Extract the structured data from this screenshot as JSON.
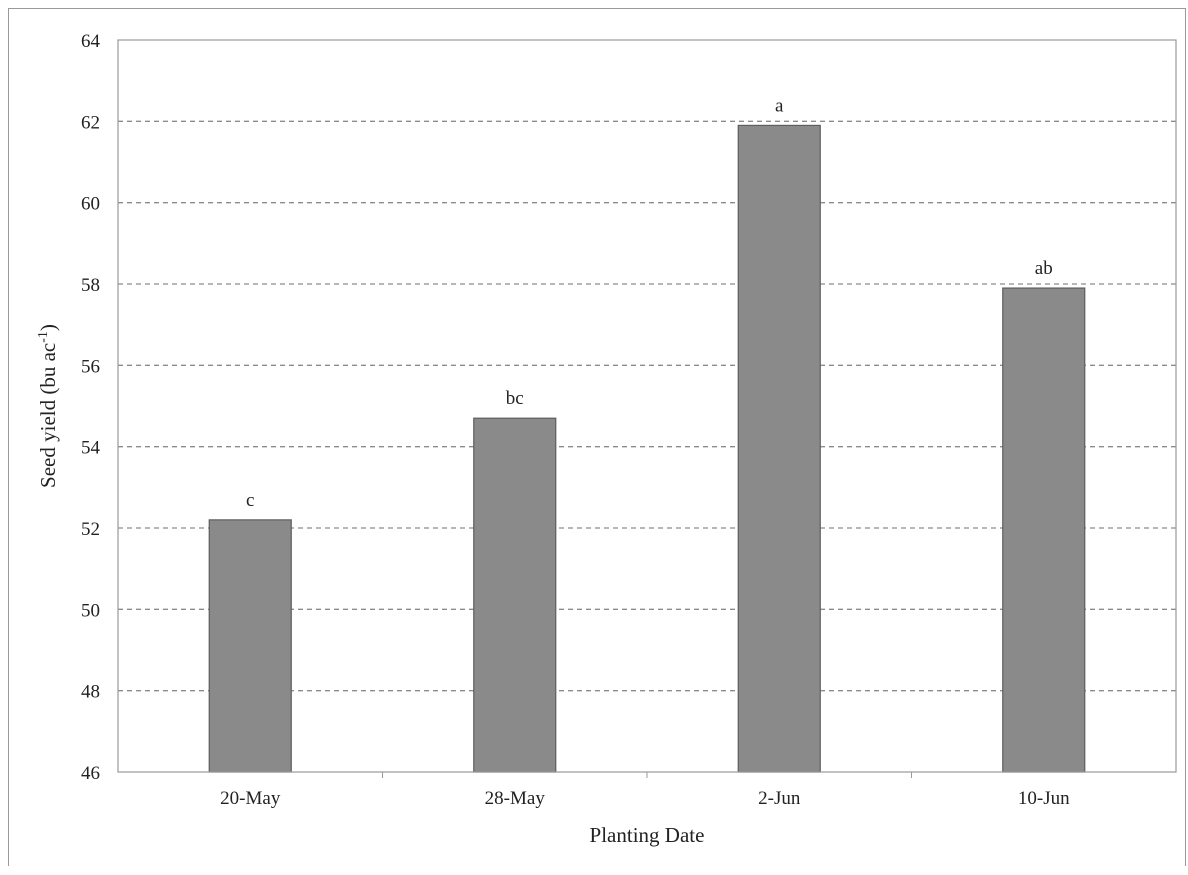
{
  "chart_data": {
    "type": "bar",
    "categories": [
      "20-May",
      "28-May",
      "2-Jun",
      "10-Jun"
    ],
    "values": [
      52.2,
      54.7,
      61.9,
      57.9
    ],
    "annotations": [
      "c",
      "bc",
      "a",
      "ab"
    ],
    "xlabel": "Planting Date",
    "ylabel_main": "Seed yield (bu ac",
    "ylabel_sup": "-1",
    "ylabel_close": ")",
    "ylim": [
      46,
      64
    ],
    "yticks": [
      46,
      48,
      50,
      52,
      54,
      56,
      58,
      60,
      62,
      64
    ],
    "grid": true,
    "grid_style": "dashed",
    "colors": {
      "bar": "#8a8a8a",
      "bar_edge": "#5e5e5e",
      "grid": "#8c8c8c",
      "axis": "#9a9a9a"
    }
  }
}
